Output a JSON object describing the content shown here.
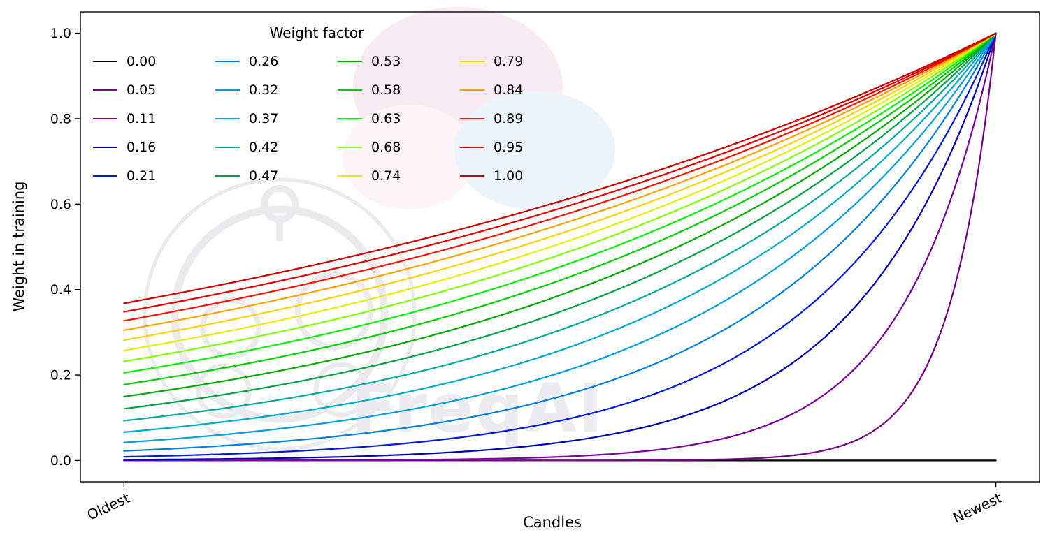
{
  "chart_data": {
    "type": "line",
    "title": "",
    "xlabel": "Candles",
    "ylabel": "Weight in training",
    "x_tick_labels": [
      "Oldest",
      "Newest"
    ],
    "x_tick_positions": [
      0,
      1
    ],
    "y_ticks": [
      0.0,
      0.2,
      0.4,
      0.6,
      0.8,
      1.0
    ],
    "xlim": [
      0,
      1
    ],
    "ylim": [
      0,
      1
    ],
    "grid": false,
    "background": "#ffffff",
    "watermark": "FreqAI",
    "legend": {
      "title": "Weight factor",
      "position": "upper left",
      "columns": 4,
      "frame": false
    },
    "curve_formula": "y = exp(-(1 - x) / weight_factor)",
    "series": [
      {
        "label": "0.00",
        "weight_factor": 0.0,
        "color": "#000000"
      },
      {
        "label": "0.05",
        "weight_factor": 0.0526,
        "color": "#780089"
      },
      {
        "label": "0.11",
        "weight_factor": 0.1053,
        "color": "#7a009b"
      },
      {
        "label": "0.16",
        "weight_factor": 0.1579,
        "color": "#0000b2"
      },
      {
        "label": "0.21",
        "weight_factor": 0.2105,
        "color": "#0019dd"
      },
      {
        "label": "0.26",
        "weight_factor": 0.2632,
        "color": "#0080dd"
      },
      {
        "label": "0.32",
        "weight_factor": 0.3158,
        "color": "#009edd"
      },
      {
        "label": "0.37",
        "weight_factor": 0.3684,
        "color": "#00aaca"
      },
      {
        "label": "0.42",
        "weight_factor": 0.4211,
        "color": "#00aa9c"
      },
      {
        "label": "0.47",
        "weight_factor": 0.4737,
        "color": "#00a247"
      },
      {
        "label": "0.53",
        "weight_factor": 0.5263,
        "color": "#00ab00"
      },
      {
        "label": "0.58",
        "weight_factor": 0.5789,
        "color": "#00cf00"
      },
      {
        "label": "0.63",
        "weight_factor": 0.6316,
        "color": "#00f200"
      },
      {
        "label": "0.68",
        "weight_factor": 0.6842,
        "color": "#80ff00"
      },
      {
        "label": "0.74",
        "weight_factor": 0.7368,
        "color": "#e1f200"
      },
      {
        "label": "0.79",
        "weight_factor": 0.7895,
        "color": "#fbd300"
      },
      {
        "label": "0.84",
        "weight_factor": 0.8421,
        "color": "#ffa100"
      },
      {
        "label": "0.89",
        "weight_factor": 0.8947,
        "color": "#ff1100"
      },
      {
        "label": "0.95",
        "weight_factor": 0.9474,
        "color": "#df0000"
      },
      {
        "label": "1.00",
        "weight_factor": 1.0,
        "color": "#cc0000"
      }
    ]
  }
}
